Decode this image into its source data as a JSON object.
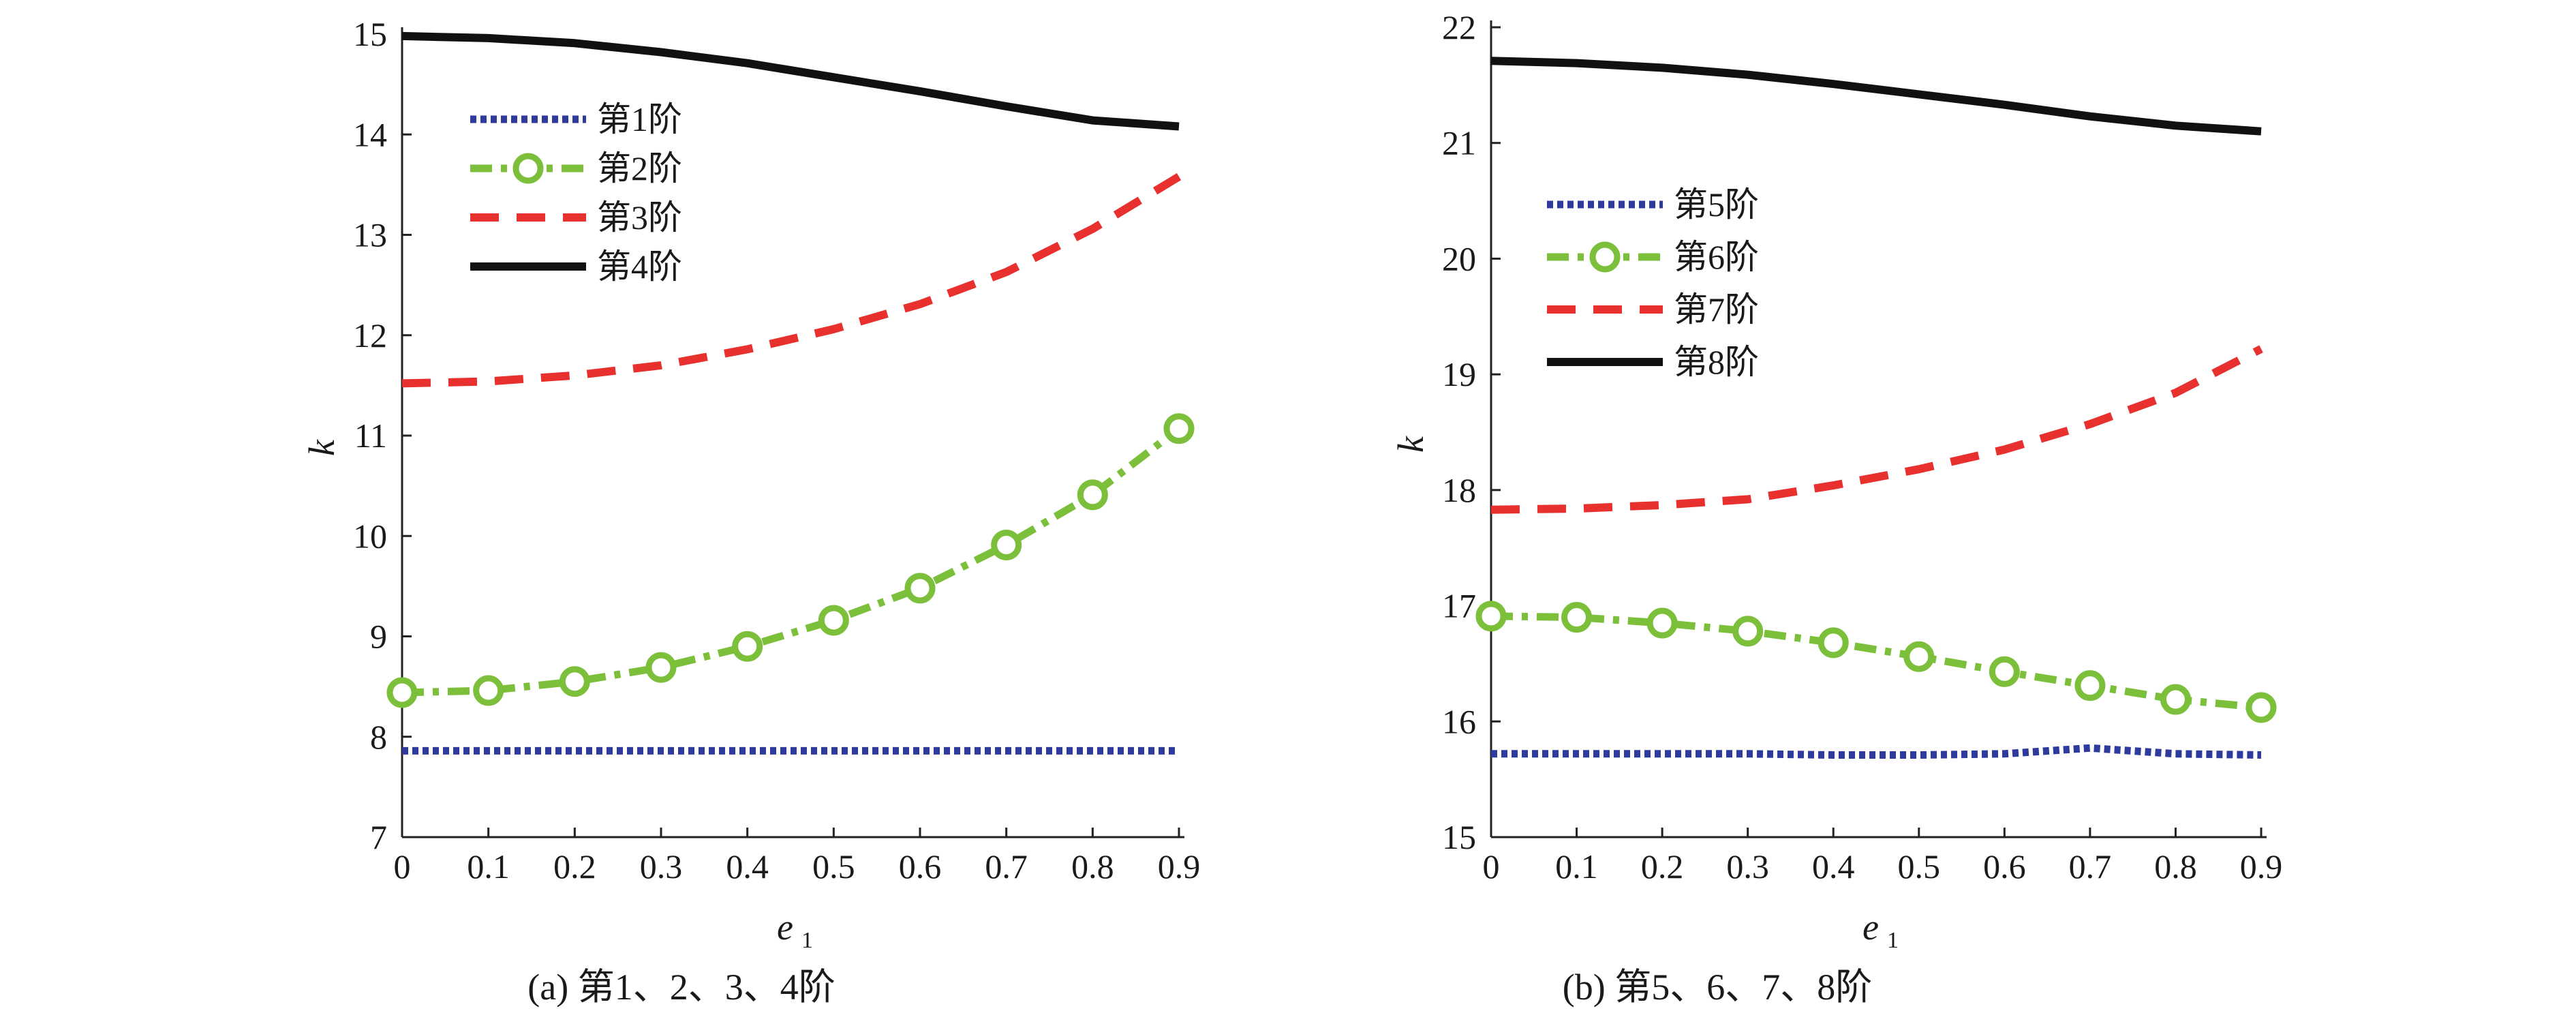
{
  "figure": {
    "caption_a": "(a) 第1、2、3、4阶",
    "caption_b": "(b) 第5、6、7、8阶"
  },
  "chart_data": [
    {
      "type": "line",
      "id": "a",
      "title": "(a) 第1、2、3、4阶",
      "xlabel": "e",
      "xlabel_sub": "1",
      "ylabel": "k",
      "x": [
        0,
        0.1,
        0.2,
        0.3,
        0.4,
        0.5,
        0.6,
        0.7,
        0.8,
        0.9
      ],
      "xlim": [
        0,
        0.9
      ],
      "ylim": [
        7,
        15
      ],
      "xticks": [
        0,
        0.1,
        0.2,
        0.3,
        0.4,
        0.5,
        0.6,
        0.7,
        0.8,
        0.9
      ],
      "xtick_labels": [
        "0",
        "0.1",
        "0.2",
        "0.3",
        "0.4",
        "0.5",
        "0.6",
        "0.7",
        "0.8",
        "0.9"
      ],
      "yticks": [
        7,
        8,
        9,
        10,
        11,
        12,
        13,
        14,
        15
      ],
      "ytick_labels": [
        "7",
        "8",
        "9",
        "10",
        "11",
        "12",
        "13",
        "14",
        "15"
      ],
      "legend_position": "upper-left",
      "series": [
        {
          "name": "第1阶",
          "color": "#2e3a9c",
          "style": "dotted",
          "marker": "none",
          "values": [
            7.86,
            7.86,
            7.86,
            7.86,
            7.86,
            7.86,
            7.86,
            7.86,
            7.86,
            7.86
          ]
        },
        {
          "name": "第2阶",
          "color": "#7bbf3a",
          "style": "dashdot",
          "marker": "circle",
          "values": [
            8.44,
            8.46,
            8.55,
            8.69,
            8.9,
            9.16,
            9.48,
            9.91,
            10.41,
            11.07
          ]
        },
        {
          "name": "第3阶",
          "color": "#e8312f",
          "style": "dashed",
          "marker": "none",
          "values": [
            11.52,
            11.54,
            11.6,
            11.7,
            11.86,
            12.06,
            12.31,
            12.63,
            13.06,
            13.58
          ]
        },
        {
          "name": "第4阶",
          "color": "#111111",
          "style": "solid",
          "marker": "none",
          "values": [
            14.98,
            14.96,
            14.91,
            14.82,
            14.71,
            14.57,
            14.43,
            14.28,
            14.14,
            14.08
          ]
        }
      ]
    },
    {
      "type": "line",
      "id": "b",
      "title": "(b) 第5、6、7、8阶",
      "xlabel": "e",
      "xlabel_sub": "1",
      "ylabel": "k",
      "x": [
        0,
        0.1,
        0.2,
        0.3,
        0.4,
        0.5,
        0.6,
        0.7,
        0.8,
        0.9
      ],
      "xlim": [
        0,
        0.9
      ],
      "ylim": [
        15,
        22
      ],
      "xticks": [
        0,
        0.1,
        0.2,
        0.3,
        0.4,
        0.5,
        0.6,
        0.7,
        0.8,
        0.9
      ],
      "xtick_labels": [
        "0",
        "0.1",
        "0.2",
        "0.3",
        "0.4",
        "0.5",
        "0.6",
        "0.7",
        "0.8",
        "0.9"
      ],
      "yticks": [
        15,
        16,
        17,
        18,
        19,
        20,
        21,
        22
      ],
      "ytick_labels": [
        "15",
        "16",
        "17",
        "18",
        "19",
        "20",
        "21",
        "22"
      ],
      "legend_position": "upper-left",
      "series": [
        {
          "name": "第5阶",
          "color": "#2e3a9c",
          "style": "dotted",
          "marker": "none",
          "values": [
            15.72,
            15.72,
            15.72,
            15.72,
            15.71,
            15.71,
            15.72,
            15.77,
            15.72,
            15.71
          ]
        },
        {
          "name": "第6阶",
          "color": "#7bbf3a",
          "style": "dashdot",
          "marker": "circle",
          "values": [
            16.91,
            16.9,
            16.85,
            16.78,
            16.68,
            16.56,
            16.43,
            16.31,
            16.19,
            16.12
          ]
        },
        {
          "name": "第7阶",
          "color": "#e8312f",
          "style": "dashed",
          "marker": "none",
          "values": [
            17.83,
            17.84,
            17.87,
            17.92,
            18.04,
            18.18,
            18.35,
            18.57,
            18.84,
            19.22
          ]
        },
        {
          "name": "第8阶",
          "color": "#111111",
          "style": "solid",
          "marker": "none",
          "values": [
            21.71,
            21.69,
            21.65,
            21.59,
            21.51,
            21.42,
            21.33,
            21.23,
            21.15,
            21.1
          ]
        }
      ]
    }
  ]
}
